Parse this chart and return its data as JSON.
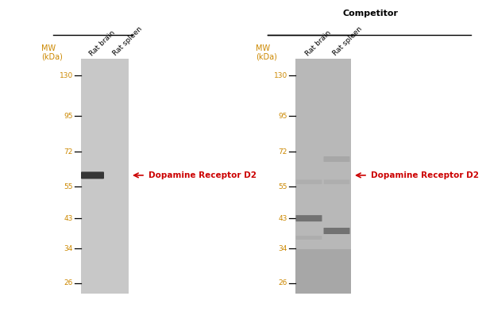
{
  "bg_color": "#ffffff",
  "mw_color": "#cc8800",
  "mw_label_line1": "MW",
  "mw_label_line2": "(kDa)",
  "title_right": "Competitor",
  "title_color": "#000000",
  "annotation_text": "←Dopamine Receptor D2",
  "annotation_color": "#cc0000",
  "mw_ticks": [
    130,
    95,
    72,
    55,
    43,
    34,
    26
  ],
  "ymin": 24,
  "ymax": 148,
  "fig_width": 5.85,
  "fig_height": 3.82,
  "gel_color_left": "#c8c8c8",
  "gel_color_right": "#b8b8b8",
  "band_color_dark": "#2a2a2a",
  "band_color_medium": "#666666",
  "band_color_faint": "#999999"
}
